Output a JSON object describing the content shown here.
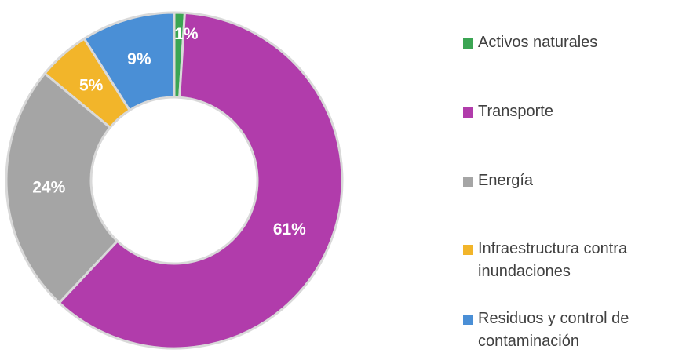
{
  "chart_data": {
    "type": "donut",
    "categories": [
      "Activos naturales",
      "Transporte",
      "Energía",
      "Infraestructura contra inundaciones",
      "Residuos y control de contaminación"
    ],
    "values": [
      1,
      61,
      24,
      5,
      9
    ],
    "value_labels": [
      "1%",
      "61%",
      "24%",
      "5%",
      "9%"
    ],
    "colors": [
      "#3ba553",
      "#b13cab",
      "#a5a5a5",
      "#f2b52a",
      "#4a8fd6"
    ],
    "legend": "right"
  }
}
